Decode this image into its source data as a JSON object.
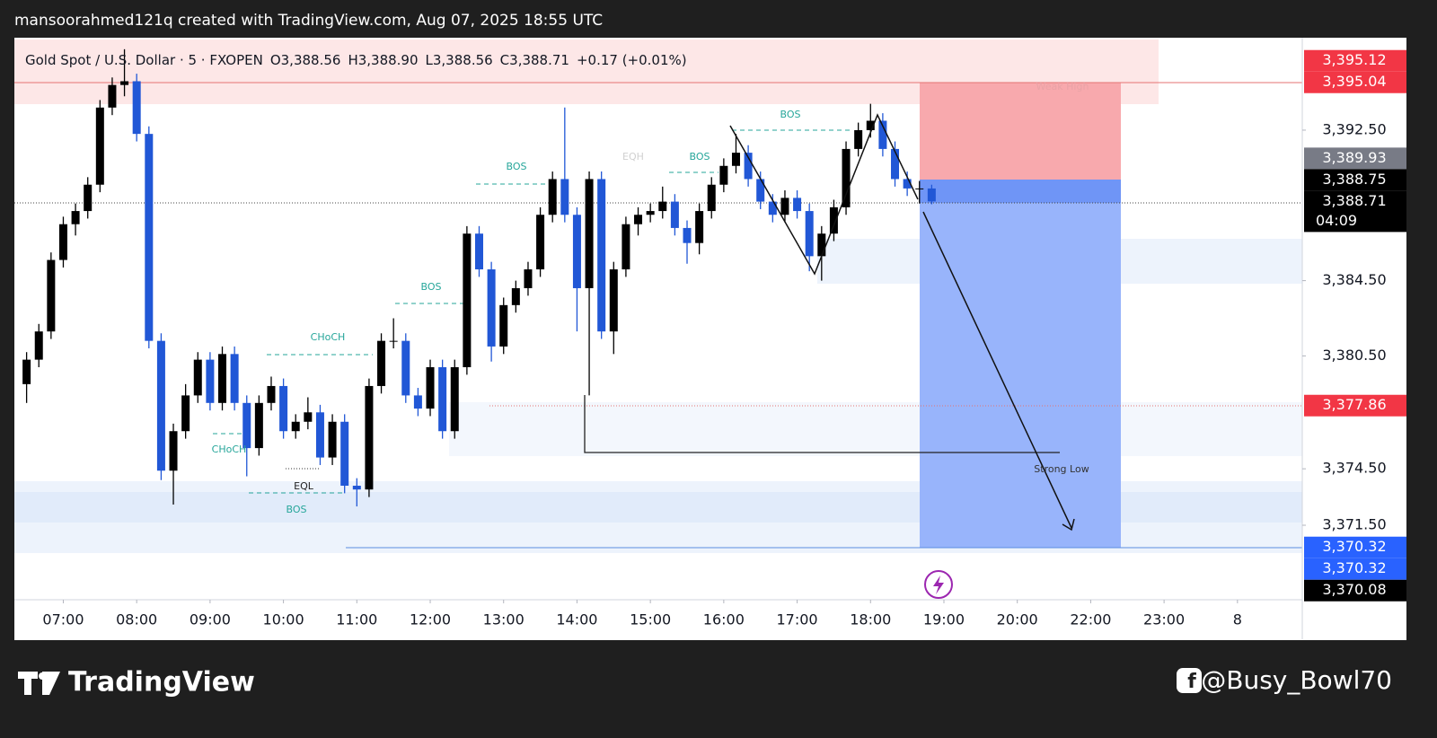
{
  "header": {
    "title": "mansoorahmed121q created with TradingView.com, Aug 07, 2025 18:55 UTC"
  },
  "chart_data": {
    "type": "candlestick",
    "title": "Gold Spot / U.S. Dollar · 5 · FXOPEN",
    "ohlc_labels": [
      "O3,388.56",
      "H3,388.90",
      "L3,388.56",
      "C3,388.71"
    ],
    "change_label": "+0.17 (+0.01%)",
    "up_color": "#000000",
    "down_color": "#2157d6",
    "grid": false,
    "xlim": [
      380,
      1433
    ],
    "ylim": [
      3367.54,
      3397.27
    ],
    "xticks": [
      {
        "value": 420,
        "label": "07:00"
      },
      {
        "value": 480,
        "label": "08:00"
      },
      {
        "value": 540,
        "label": "09:00"
      },
      {
        "value": 600,
        "label": "10:00"
      },
      {
        "value": 660,
        "label": "11:00"
      },
      {
        "value": 720,
        "label": "12:00"
      },
      {
        "value": 780,
        "label": "13:00"
      },
      {
        "value": 840,
        "label": "14:00"
      },
      {
        "value": 900,
        "label": "15:00"
      },
      {
        "value": 960,
        "label": "16:00"
      },
      {
        "value": 1020,
        "label": "17:00"
      },
      {
        "value": 1080,
        "label": "18:00"
      },
      {
        "value": 1140,
        "label": "19:00"
      },
      {
        "value": 1200,
        "label": "20:00"
      },
      {
        "value": 1260,
        "label": "22:00"
      },
      {
        "value": 1320,
        "label": "23:00"
      },
      {
        "value": 1380,
        "label": "8"
      }
    ],
    "yticks": [
      {
        "value": 3392.5,
        "label": "3,392.50"
      },
      {
        "value": 3384.5,
        "label": "3,384.50"
      },
      {
        "value": 3380.5,
        "label": "3,380.50"
      },
      {
        "value": 3374.5,
        "label": "3,374.50"
      },
      {
        "value": 3371.5,
        "label": "3,371.50"
      }
    ],
    "price_labels": [
      {
        "value": 3395.12,
        "label": "3,395.12",
        "color": "#f23645"
      },
      {
        "value": 3395.04,
        "label": "3,395.04",
        "color": "#f23645"
      },
      {
        "value": 3389.93,
        "label": "3,389.93",
        "color": "#787b86"
      },
      {
        "value": 3388.75,
        "label": "3,388.75",
        "color": "#000000"
      },
      {
        "value": 3388.71,
        "label": "3,388.71",
        "color": "#000000"
      },
      {
        "value": 3377.86,
        "label": "3,377.86",
        "color": "#f23645"
      },
      {
        "value": 3370.32,
        "label": "3,370.32",
        "color": "#2962ff"
      },
      {
        "value": 3370.32,
        "label": "3,370.32",
        "color": "#2962ff"
      },
      {
        "value": 3370.08,
        "label": "3,370.08",
        "color": "#000000"
      }
    ],
    "countdown": "04:09",
    "annotations": [
      "BOS",
      "BOS",
      "CHoCH",
      "CHoCH",
      "EQL",
      "BOS",
      "EQH",
      "BOS",
      "BOS",
      "Weak High",
      "Strong Low"
    ],
    "candles": [
      {
        "t": 390,
        "open": 3379.0,
        "high": 3380.7,
        "low": 3378.0,
        "close": 3380.3
      },
      {
        "t": 400,
        "open": 3380.3,
        "high": 3382.2,
        "low": 3379.9,
        "close": 3381.8
      },
      {
        "t": 410,
        "open": 3381.8,
        "high": 3386.0,
        "low": 3381.4,
        "close": 3385.6
      },
      {
        "t": 420,
        "open": 3385.6,
        "high": 3387.9,
        "low": 3385.2,
        "close": 3387.5
      },
      {
        "t": 430,
        "open": 3387.5,
        "high": 3388.6,
        "low": 3386.9,
        "close": 3388.2
      },
      {
        "t": 440,
        "open": 3388.2,
        "high": 3390.0,
        "low": 3387.8,
        "close": 3389.6
      },
      {
        "t": 450,
        "open": 3389.6,
        "high": 3394.1,
        "low": 3389.2,
        "close": 3393.7
      },
      {
        "t": 460,
        "open": 3393.7,
        "high": 3395.3,
        "low": 3393.3,
        "close": 3394.9
      },
      {
        "t": 470,
        "open": 3394.9,
        "high": 3396.8,
        "low": 3394.3,
        "close": 3395.1
      },
      {
        "t": 480,
        "open": 3395.1,
        "high": 3395.5,
        "low": 3391.9,
        "close": 3392.3
      },
      {
        "t": 490,
        "open": 3392.3,
        "high": 3392.7,
        "low": 3380.9,
        "close": 3381.3
      },
      {
        "t": 500,
        "open": 3381.3,
        "high": 3381.7,
        "low": 3373.9,
        "close": 3374.4
      },
      {
        "t": 510,
        "open": 3374.4,
        "high": 3376.9,
        "low": 3372.6,
        "close": 3376.5
      },
      {
        "t": 520,
        "open": 3376.5,
        "high": 3379.0,
        "low": 3376.1,
        "close": 3378.4
      },
      {
        "t": 530,
        "open": 3378.4,
        "high": 3380.7,
        "low": 3378.0,
        "close": 3380.3
      },
      {
        "t": 540,
        "open": 3380.3,
        "high": 3380.7,
        "low": 3377.6,
        "close": 3378.0
      },
      {
        "t": 550,
        "open": 3378.0,
        "high": 3381.0,
        "low": 3377.6,
        "close": 3380.6
      },
      {
        "t": 560,
        "open": 3380.6,
        "high": 3381.0,
        "low": 3377.6,
        "close": 3378.0
      },
      {
        "t": 570,
        "open": 3378.0,
        "high": 3378.4,
        "low": 3374.1,
        "close": 3375.6
      },
      {
        "t": 580,
        "open": 3375.6,
        "high": 3378.4,
        "low": 3375.2,
        "close": 3378.0
      },
      {
        "t": 590,
        "open": 3378.0,
        "high": 3379.4,
        "low": 3377.6,
        "close": 3378.9
      },
      {
        "t": 600,
        "open": 3378.9,
        "high": 3379.3,
        "low": 3376.1,
        "close": 3376.5
      },
      {
        "t": 610,
        "open": 3376.5,
        "high": 3377.4,
        "low": 3376.1,
        "close": 3377.0
      },
      {
        "t": 620,
        "open": 3377.0,
        "high": 3378.3,
        "low": 3376.6,
        "close": 3377.5
      },
      {
        "t": 630,
        "open": 3377.5,
        "high": 3377.9,
        "low": 3374.7,
        "close": 3375.1
      },
      {
        "t": 640,
        "open": 3375.1,
        "high": 3377.4,
        "low": 3374.7,
        "close": 3377.0
      },
      {
        "t": 650,
        "open": 3377.0,
        "high": 3377.4,
        "low": 3373.2,
        "close": 3373.6
      },
      {
        "t": 660,
        "open": 3373.6,
        "high": 3374.0,
        "low": 3372.5,
        "close": 3373.4
      },
      {
        "t": 670,
        "open": 3373.4,
        "high": 3379.3,
        "low": 3373.0,
        "close": 3378.9
      },
      {
        "t": 680,
        "open": 3378.9,
        "high": 3381.7,
        "low": 3378.5,
        "close": 3381.3
      },
      {
        "t": 690,
        "open": 3381.3,
        "high": 3382.5,
        "low": 3380.9,
        "close": 3381.3
      },
      {
        "t": 700,
        "open": 3381.3,
        "high": 3381.7,
        "low": 3378.0,
        "close": 3378.4
      },
      {
        "t": 710,
        "open": 3378.4,
        "high": 3378.8,
        "low": 3377.3,
        "close": 3377.7
      },
      {
        "t": 720,
        "open": 3377.7,
        "high": 3380.3,
        "low": 3377.3,
        "close": 3379.9
      },
      {
        "t": 730,
        "open": 3379.9,
        "high": 3380.3,
        "low": 3376.1,
        "close": 3376.5
      },
      {
        "t": 740,
        "open": 3376.5,
        "high": 3380.3,
        "low": 3376.1,
        "close": 3379.9
      },
      {
        "t": 750,
        "open": 3379.9,
        "high": 3387.4,
        "low": 3379.5,
        "close": 3387.0
      },
      {
        "t": 760,
        "open": 3387.0,
        "high": 3387.4,
        "low": 3384.7,
        "close": 3385.1
      },
      {
        "t": 770,
        "open": 3385.1,
        "high": 3385.5,
        "low": 3380.2,
        "close": 3381.0
      },
      {
        "t": 780,
        "open": 3381.0,
        "high": 3383.6,
        "low": 3380.6,
        "close": 3383.2
      },
      {
        "t": 790,
        "open": 3383.2,
        "high": 3384.5,
        "low": 3382.8,
        "close": 3384.1
      },
      {
        "t": 800,
        "open": 3384.1,
        "high": 3385.5,
        "low": 3383.7,
        "close": 3385.1
      },
      {
        "t": 810,
        "open": 3385.1,
        "high": 3388.4,
        "low": 3384.7,
        "close": 3388.0
      },
      {
        "t": 820,
        "open": 3388.0,
        "high": 3390.3,
        "low": 3387.6,
        "close": 3389.9
      },
      {
        "t": 830,
        "open": 3389.9,
        "high": 3393.7,
        "low": 3387.6,
        "close": 3388.0
      },
      {
        "t": 840,
        "open": 3388.0,
        "high": 3388.4,
        "low": 3381.8,
        "close": 3384.1
      },
      {
        "t": 850,
        "open": 3384.1,
        "high": 3390.3,
        "low": 3378.4,
        "close": 3389.9
      },
      {
        "t": 860,
        "open": 3389.9,
        "high": 3390.3,
        "low": 3381.4,
        "close": 3381.8
      },
      {
        "t": 870,
        "open": 3381.8,
        "high": 3385.5,
        "low": 3380.6,
        "close": 3385.1
      },
      {
        "t": 880,
        "open": 3385.1,
        "high": 3387.9,
        "low": 3384.7,
        "close": 3387.5
      },
      {
        "t": 890,
        "open": 3387.5,
        "high": 3388.4,
        "low": 3386.9,
        "close": 3388.0
      },
      {
        "t": 900,
        "open": 3388.0,
        "high": 3388.6,
        "low": 3387.6,
        "close": 3388.2
      },
      {
        "t": 910,
        "open": 3388.2,
        "high": 3389.5,
        "low": 3387.8,
        "close": 3388.7
      },
      {
        "t": 920,
        "open": 3388.7,
        "high": 3389.1,
        "low": 3386.9,
        "close": 3387.3
      },
      {
        "t": 930,
        "open": 3387.3,
        "high": 3387.7,
        "low": 3385.4,
        "close": 3386.5
      },
      {
        "t": 940,
        "open": 3386.5,
        "high": 3388.6,
        "low": 3385.9,
        "close": 3388.2
      },
      {
        "t": 950,
        "open": 3388.2,
        "high": 3390.0,
        "low": 3387.8,
        "close": 3389.6
      },
      {
        "t": 960,
        "open": 3389.6,
        "high": 3391.0,
        "low": 3389.2,
        "close": 3390.6
      },
      {
        "t": 970,
        "open": 3390.6,
        "high": 3392.3,
        "low": 3390.2,
        "close": 3391.3
      },
      {
        "t": 980,
        "open": 3391.3,
        "high": 3391.7,
        "low": 3389.5,
        "close": 3389.9
      },
      {
        "t": 990,
        "open": 3389.9,
        "high": 3390.3,
        "low": 3388.3,
        "close": 3388.7
      },
      {
        "t": 1000,
        "open": 3388.7,
        "high": 3389.1,
        "low": 3387.6,
        "close": 3388.0
      },
      {
        "t": 1010,
        "open": 3388.0,
        "high": 3389.3,
        "low": 3387.6,
        "close": 3388.9
      },
      {
        "t": 1020,
        "open": 3388.9,
        "high": 3389.3,
        "low": 3387.8,
        "close": 3388.2
      },
      {
        "t": 1030,
        "open": 3388.2,
        "high": 3388.6,
        "low": 3385.0,
        "close": 3385.8
      },
      {
        "t": 1040,
        "open": 3385.8,
        "high": 3387.4,
        "low": 3384.5,
        "close": 3387.0
      },
      {
        "t": 1050,
        "open": 3387.0,
        "high": 3388.8,
        "low": 3386.6,
        "close": 3388.4
      },
      {
        "t": 1060,
        "open": 3388.4,
        "high": 3391.9,
        "low": 3388.0,
        "close": 3391.5
      },
      {
        "t": 1070,
        "open": 3391.5,
        "high": 3392.9,
        "low": 3391.1,
        "close": 3392.5
      },
      {
        "t": 1080,
        "open": 3392.5,
        "high": 3393.9,
        "low": 3392.1,
        "close": 3393.0
      },
      {
        "t": 1090,
        "open": 3393.0,
        "high": 3393.4,
        "low": 3391.1,
        "close": 3391.5
      },
      {
        "t": 1100,
        "open": 3391.5,
        "high": 3391.9,
        "low": 3389.5,
        "close": 3389.9
      },
      {
        "t": 1110,
        "open": 3389.9,
        "high": 3390.3,
        "low": 3389.0,
        "close": 3389.4
      },
      {
        "t": 1120,
        "open": 3389.4,
        "high": 3389.8,
        "low": 3388.6,
        "close": 3389.4
      },
      {
        "t": 1130,
        "open": 3389.4,
        "high": 3389.6,
        "low": 3388.56,
        "close": 3388.71
      }
    ]
  },
  "footer": {
    "logo": "TradingView",
    "handle": "@Busy_Bowl70"
  }
}
